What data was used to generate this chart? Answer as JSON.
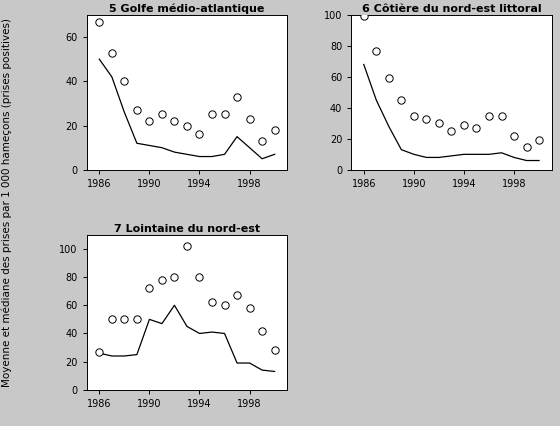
{
  "panel1": {
    "title": "5 Golfe médio-atlantique",
    "years_mean": [
      1986,
      1987,
      1988,
      1989,
      1990,
      1991,
      1992,
      1993,
      1994,
      1995,
      1996,
      1997,
      1998,
      1999,
      2000
    ],
    "mean_vals": [
      67,
      53,
      40,
      27,
      22,
      25,
      22,
      20,
      16,
      25,
      25,
      33,
      23,
      13,
      18
    ],
    "years_median": [
      1986,
      1987,
      1988,
      1989,
      1990,
      1991,
      1992,
      1993,
      1994,
      1995,
      1996,
      1997,
      1998,
      1999,
      2000
    ],
    "median_vals": [
      50,
      42,
      26,
      12,
      11,
      10,
      8,
      7,
      6,
      6,
      7,
      15,
      10,
      5,
      7
    ],
    "ylim": [
      0,
      70
    ],
    "yticks": [
      0,
      20,
      40,
      60
    ],
    "xticks": [
      1986,
      1990,
      1994,
      1998
    ]
  },
  "panel2": {
    "title": "6 Côtière du nord-est littoral",
    "years_mean": [
      1986,
      1987,
      1988,
      1989,
      1990,
      1991,
      1992,
      1993,
      1994,
      1995,
      1996,
      1997,
      1998,
      1999,
      2000
    ],
    "mean_vals": [
      99,
      77,
      59,
      45,
      35,
      33,
      30,
      25,
      29,
      27,
      35,
      35,
      22,
      15,
      19
    ],
    "years_median": [
      1986,
      1987,
      1988,
      1989,
      1990,
      1991,
      1992,
      1993,
      1994,
      1995,
      1996,
      1997,
      1998,
      1999,
      2000
    ],
    "median_vals": [
      68,
      45,
      28,
      13,
      10,
      8,
      8,
      9,
      10,
      10,
      10,
      11,
      8,
      6,
      6
    ],
    "ylim": [
      0,
      100
    ],
    "yticks": [
      0,
      20,
      40,
      60,
      80,
      100
    ],
    "xticks": [
      1986,
      1990,
      1994,
      1998
    ]
  },
  "panel3": {
    "title": "7 Lointaine du nord-est",
    "years_mean": [
      1986,
      1987,
      1988,
      1989,
      1990,
      1991,
      1992,
      1993,
      1994,
      1995,
      1996,
      1997,
      1998,
      1999,
      2000
    ],
    "mean_vals": [
      27,
      50,
      50,
      50,
      72,
      78,
      80,
      102,
      80,
      62,
      60,
      67,
      58,
      42,
      28
    ],
    "years_median": [
      1986,
      1987,
      1988,
      1989,
      1990,
      1991,
      1992,
      1993,
      1994,
      1995,
      1996,
      1997,
      1998,
      1999,
      2000
    ],
    "median_vals": [
      26,
      24,
      24,
      25,
      50,
      47,
      60,
      45,
      40,
      41,
      40,
      19,
      19,
      14,
      13
    ],
    "ylim": [
      0,
      110
    ],
    "yticks": [
      0,
      20,
      40,
      60,
      80,
      100
    ],
    "xticks": [
      1986,
      1990,
      1994,
      1998
    ]
  },
  "ylabel": "Moyenne et médiane des prises par 1 000 hameçons (prises positives)",
  "marker_mean": "s",
  "marker_mean_size": 28,
  "line_color": "black",
  "marker_color": "white",
  "marker_edge_color": "black",
  "background_color": "white",
  "fig_facecolor": "#c8c8c8",
  "title_fontsize": 8,
  "tick_fontsize": 7,
  "ylabel_fontsize": 7.5
}
